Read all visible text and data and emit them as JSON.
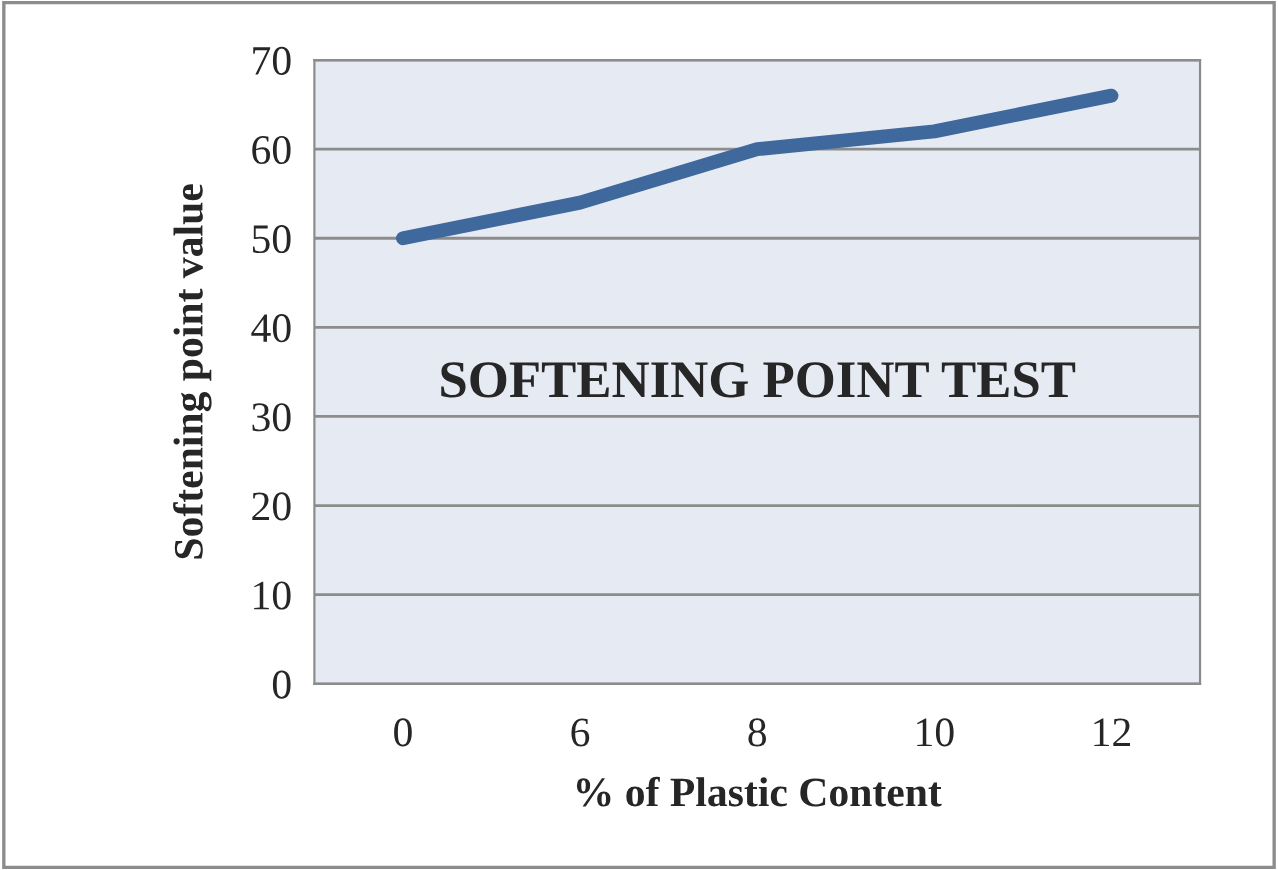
{
  "chart_data": {
    "type": "line",
    "title": "SOFTENING POINT TEST",
    "xlabel": "% of Plastic Content",
    "ylabel": "Softening point value",
    "categories": [
      "0",
      "6",
      "8",
      "10",
      "12"
    ],
    "series": [
      {
        "color": "#3f689c",
        "values": [
          50,
          54,
          60,
          62,
          66
        ]
      }
    ],
    "ylim": [
      0,
      70
    ],
    "yticks": [
      0,
      10,
      20,
      30,
      40,
      50,
      60,
      70
    ],
    "grid": "y",
    "legend": false,
    "marker": "none",
    "line_style": "solid"
  }
}
